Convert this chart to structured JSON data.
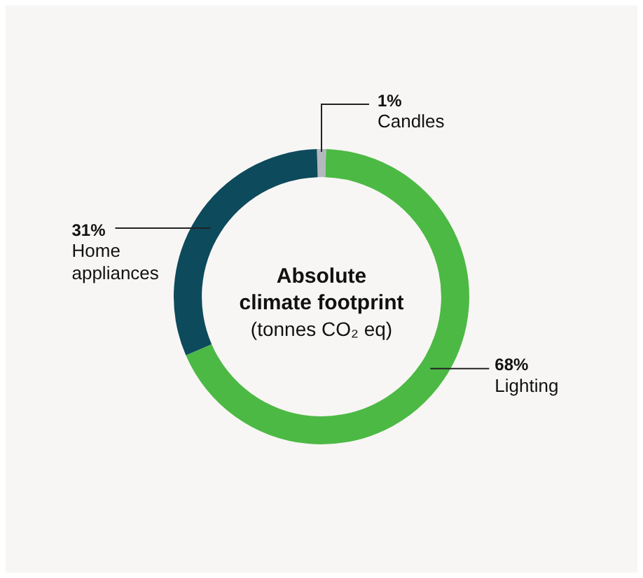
{
  "chart_data": {
    "type": "donut",
    "title": "Absolute climate footprint",
    "subtitle": "(tonnes CO₂ eq)",
    "categories": [
      "Candles",
      "Lighting",
      "Home appliances"
    ],
    "values": [
      1,
      68,
      31
    ],
    "colors": [
      "#b3b9bc",
      "#4cb944",
      "#0d4a5c"
    ],
    "value_labels": [
      "1%",
      "68%",
      "31%"
    ],
    "legend": false
  }
}
